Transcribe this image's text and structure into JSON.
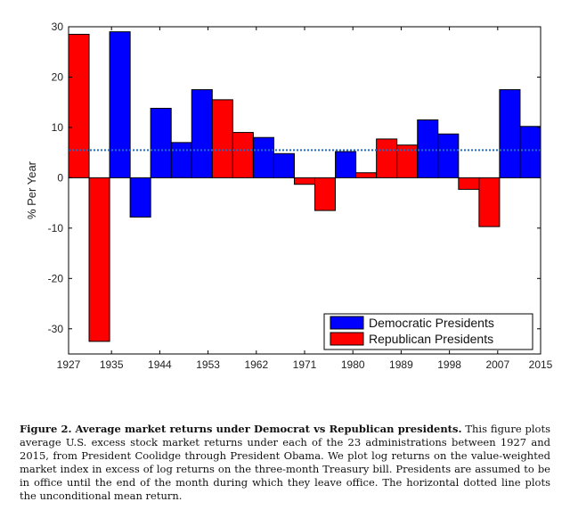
{
  "chart_data": {
    "type": "bar",
    "ylabel": "% Per Year",
    "xlabel": "",
    "ylim": [
      -35,
      30
    ],
    "xlim": [
      1927,
      2015
    ],
    "grid": false,
    "legend_position": "bottom-right",
    "yticks": [
      30,
      20,
      10,
      0,
      -10,
      -20,
      -30
    ],
    "yticklabels": [
      "30",
      "20",
      "10",
      "0",
      "-10",
      "-20",
      "-30"
    ],
    "xticks": [
      1927,
      1935,
      1944,
      1953,
      1962,
      1971,
      1980,
      1989,
      1998,
      2007,
      2015
    ],
    "xticklabels": [
      "1927",
      "1935",
      "1944",
      "1953",
      "1962",
      "1971",
      "1980",
      "1989",
      "1998",
      "2007",
      "2015"
    ],
    "mean_line": 5.5,
    "series": [
      {
        "name": "Democratic Presidents",
        "color": "#0000ff"
      },
      {
        "name": "Republican Presidents",
        "color": "#ff0000"
      }
    ],
    "bars": [
      {
        "party": "R",
        "value": 28.5
      },
      {
        "party": "R",
        "value": -32.5
      },
      {
        "party": "D",
        "value": 29.0
      },
      {
        "party": "D",
        "value": -7.8
      },
      {
        "party": "D",
        "value": 13.8
      },
      {
        "party": "D",
        "value": 7.0
      },
      {
        "party": "D",
        "value": 17.5
      },
      {
        "party": "R",
        "value": 15.5
      },
      {
        "party": "R",
        "value": 9.0
      },
      {
        "party": "D",
        "value": 8.0
      },
      {
        "party": "D",
        "value": 4.8
      },
      {
        "party": "R",
        "value": -1.3
      },
      {
        "party": "R",
        "value": -6.5
      },
      {
        "party": "D",
        "value": 5.2
      },
      {
        "party": "R",
        "value": 1.0
      },
      {
        "party": "R",
        "value": 7.7
      },
      {
        "party": "R",
        "value": 6.5
      },
      {
        "party": "D",
        "value": 11.5
      },
      {
        "party": "D",
        "value": 8.7
      },
      {
        "party": "R",
        "value": -2.3
      },
      {
        "party": "R",
        "value": -9.7
      },
      {
        "party": "D",
        "value": 17.5
      },
      {
        "party": "D",
        "value": 10.2
      }
    ]
  },
  "caption": {
    "label": "Figure 2.",
    "title": "Average market returns under Democrat vs Republican presidents.",
    "body": "This figure plots average U.S. excess stock market returns under each of the 23 administrations between 1927 and 2015, from President Coolidge through President Obama. We plot log returns on the value-weighted market index in excess of log returns on the three-month Treasury bill. Presidents are assumed to be in office until the end of the month during which they leave office. The horizontal dotted line plots the unconditional mean return."
  }
}
